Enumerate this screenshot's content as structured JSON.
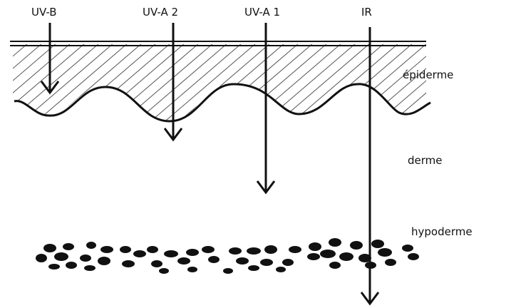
{
  "rays": [
    {
      "id": "uvb",
      "label": "UV-B"
    },
    {
      "id": "uva2",
      "label": "UV-A 2"
    },
    {
      "id": "uva1",
      "label": "UV-A 1"
    },
    {
      "id": "ir",
      "label": "IR"
    }
  ],
  "layers": {
    "epidermis": "épiderme",
    "dermis": "derme",
    "hypodermis": "hypoderme"
  },
  "colors": {
    "ink": "#111111",
    "background": "#ffffff"
  }
}
